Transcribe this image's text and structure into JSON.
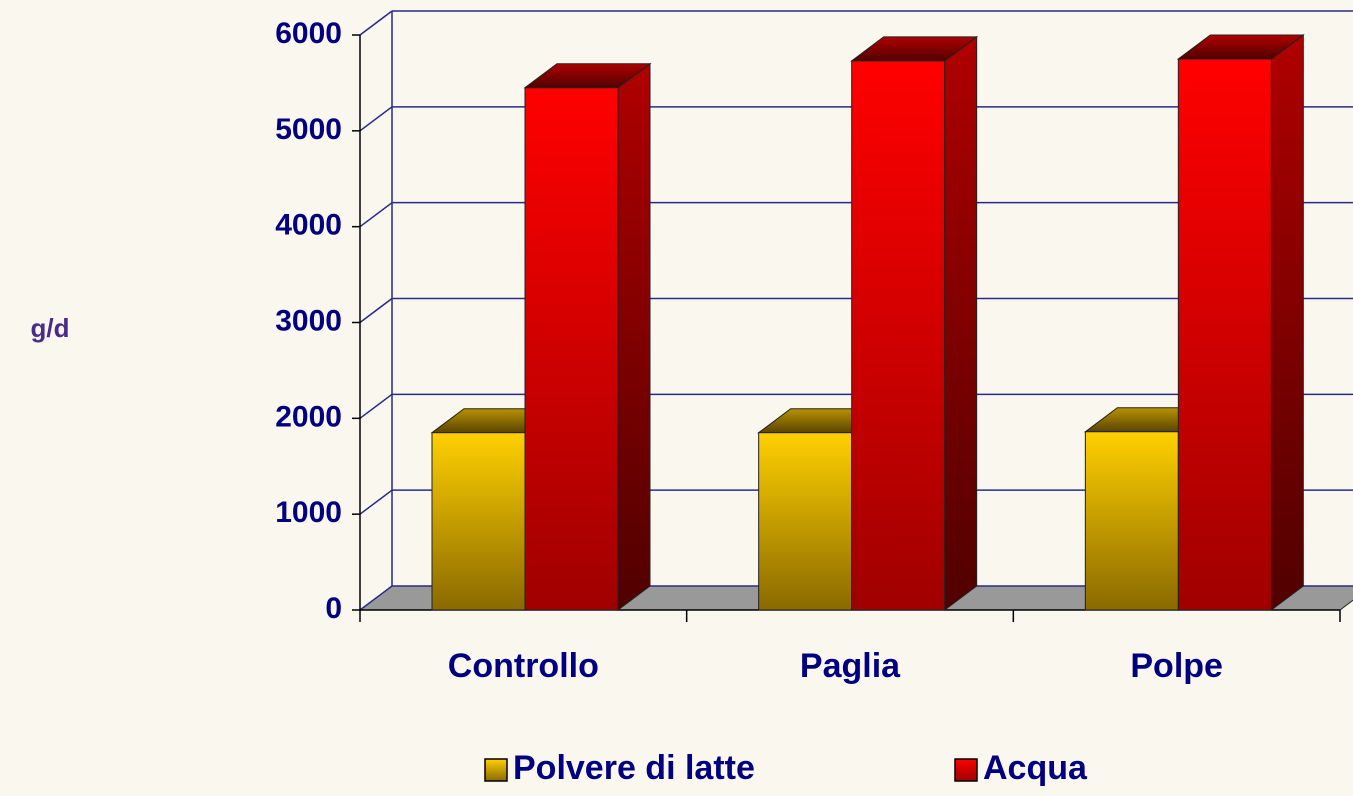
{
  "chart_data": {
    "type": "bar3d",
    "y_label": "g/d",
    "categories": [
      "Controllo",
      "Paglia",
      "Polpe"
    ],
    "series": [
      {
        "name": "Polvere di latte",
        "color": "#ffd000",
        "values": [
          1850,
          1850,
          1860
        ]
      },
      {
        "name": "Acqua",
        "color": "#ff0000",
        "values": [
          5450,
          5730,
          5750
        ]
      }
    ],
    "ylim": [
      0,
      6000
    ],
    "yticks": [
      0,
      1000,
      2000,
      3000,
      4000,
      5000,
      6000
    ],
    "grid": true
  }
}
